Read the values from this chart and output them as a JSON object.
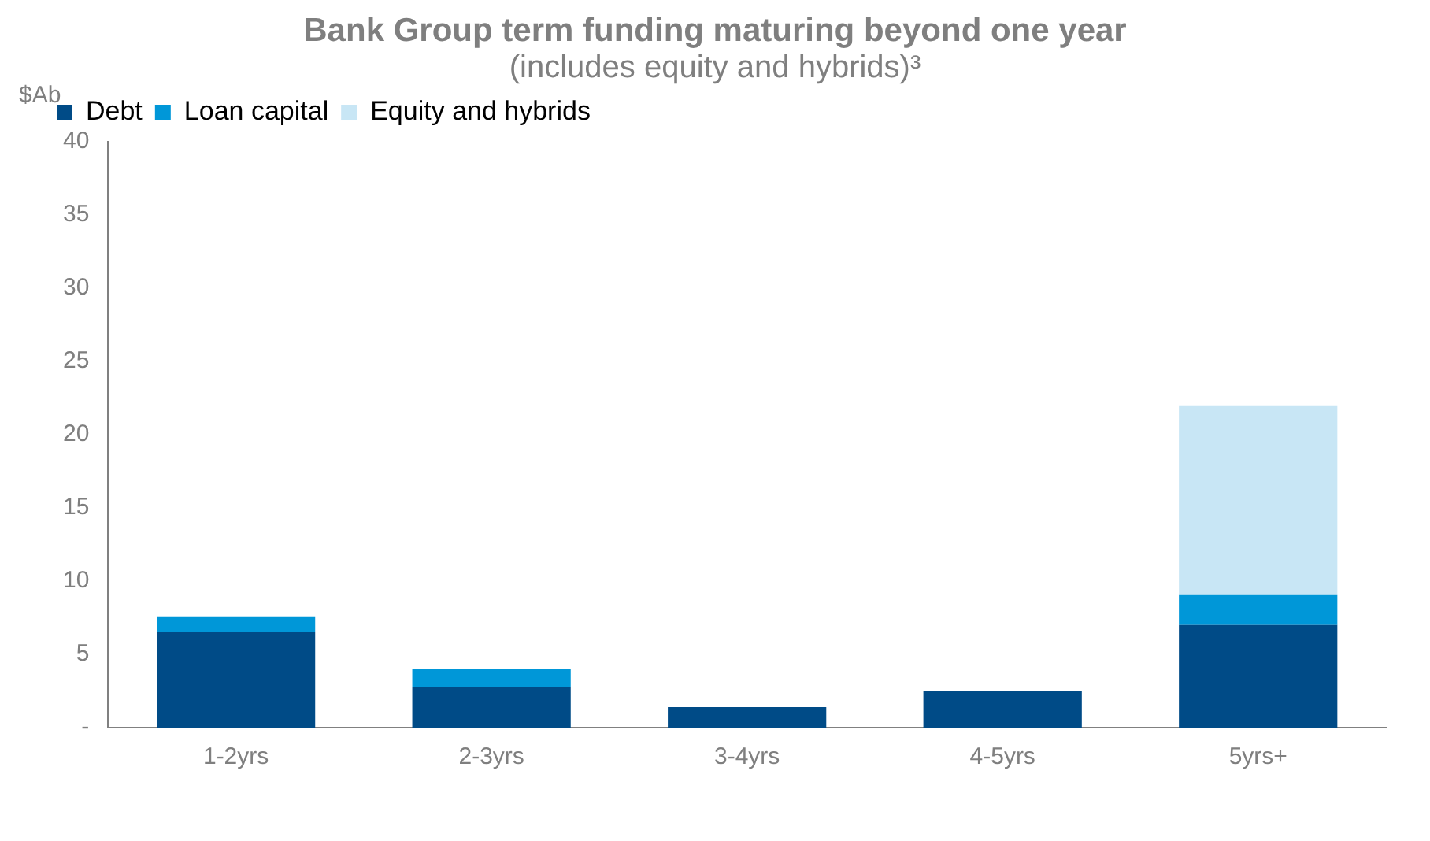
{
  "chart_data": {
    "type": "bar",
    "title": "Bank Group term funding maturing beyond one year",
    "subtitle": "(includes equity and hybrids)³",
    "ylabel": "$Ab",
    "categories": [
      "1-2yrs",
      "2-3yrs",
      "3-4yrs",
      "4-5yrs",
      "5yrs+"
    ],
    "stacked": true,
    "series": [
      {
        "name": "Debt",
        "color": "#004b87",
        "values": [
          6.5,
          2.8,
          1.4,
          2.5,
          7.0
        ]
      },
      {
        "name": "Loan capital",
        "color": "#0097d8",
        "values": [
          1.1,
          1.2,
          null,
          null,
          2.1
        ]
      },
      {
        "name": "Equity and hybrids",
        "color": "#c8e6f5",
        "values": [
          null,
          null,
          null,
          null,
          12.9
        ]
      }
    ],
    "ylim": [
      0,
      40
    ],
    "yticks": [
      {
        "value": 0,
        "label": "-"
      },
      5,
      10,
      15,
      20,
      25,
      30,
      35,
      40
    ],
    "grid": false,
    "legend": "top left"
  }
}
